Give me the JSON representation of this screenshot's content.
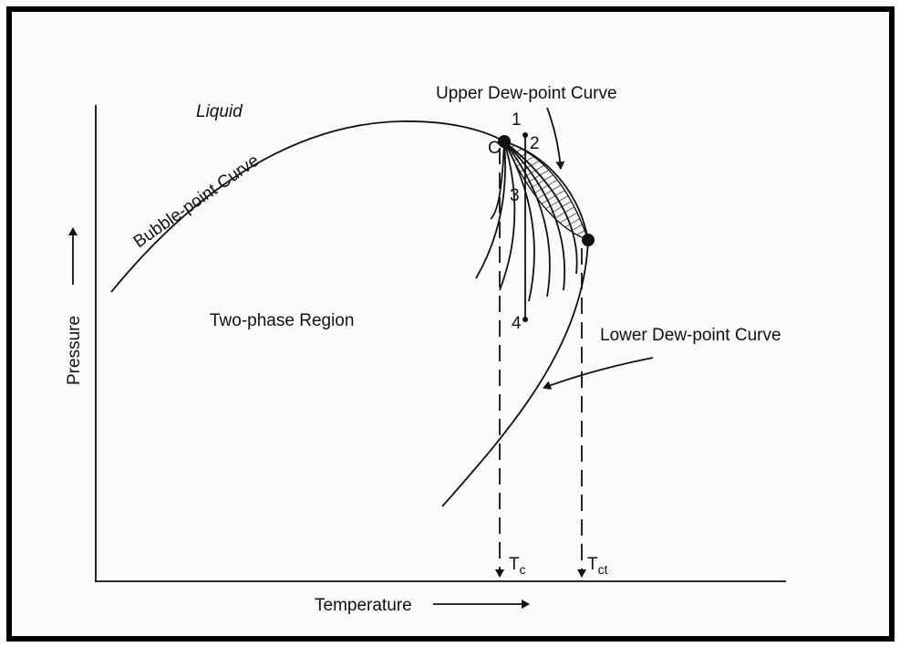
{
  "diagram": {
    "liquid": "Liquid",
    "bubble_point_curve": "Bubble-point Curve",
    "upper_dew_point_curve": "Upper Dew-point Curve",
    "lower_dew_point_curve": "Lower Dew-point Curve",
    "two_phase_region": "Two-phase Region",
    "y_axis": "Pressure",
    "x_axis": "Temperature",
    "critical_point": "C",
    "points": [
      "1",
      "2",
      "3",
      "4"
    ],
    "tc": {
      "base": "T",
      "sub": "c"
    },
    "tct": {
      "base": "T",
      "sub": "ct"
    }
  }
}
